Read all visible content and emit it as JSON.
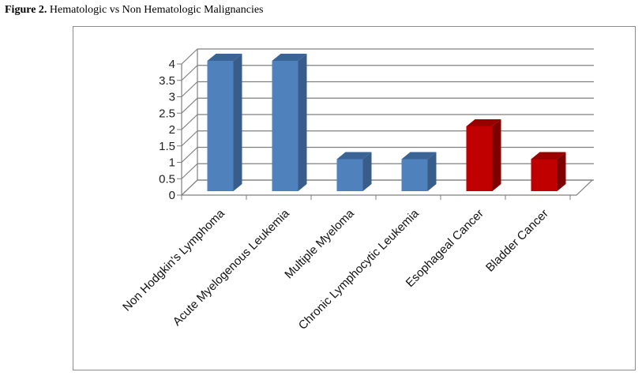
{
  "figure": {
    "label": "Figure 2.",
    "title": "Hematologic vs Non Hematologic Malignancies"
  },
  "chart_data": {
    "type": "bar",
    "style": "3d-column",
    "categories": [
      "Non Hodgkin's Lymphoma",
      "Acute Myelogenous Leukemia",
      "Multiple Myeloma",
      "Chronic Lymphocytic Leukemia",
      "Esophageal Cancer",
      "Bladder Cancer"
    ],
    "values": [
      4,
      4,
      1,
      1,
      2,
      1
    ],
    "group": [
      "hematologic",
      "hematologic",
      "hematologic",
      "hematologic",
      "non-hematologic",
      "non-hematologic"
    ],
    "colors": {
      "hematologic": {
        "front": "#4f81bd",
        "side": "#385d8a",
        "top": "#3a6496"
      },
      "non-hematologic": {
        "front": "#c00000",
        "side": "#7f0000",
        "top": "#990000"
      },
      "grid": "#7f7f7f"
    },
    "ylim": [
      0,
      4
    ],
    "yticks": [
      0,
      0.5,
      1,
      1.5,
      2,
      2.5,
      3,
      3.5,
      4
    ],
    "grid": true,
    "legend": "none",
    "xlabel": "",
    "ylabel": ""
  }
}
